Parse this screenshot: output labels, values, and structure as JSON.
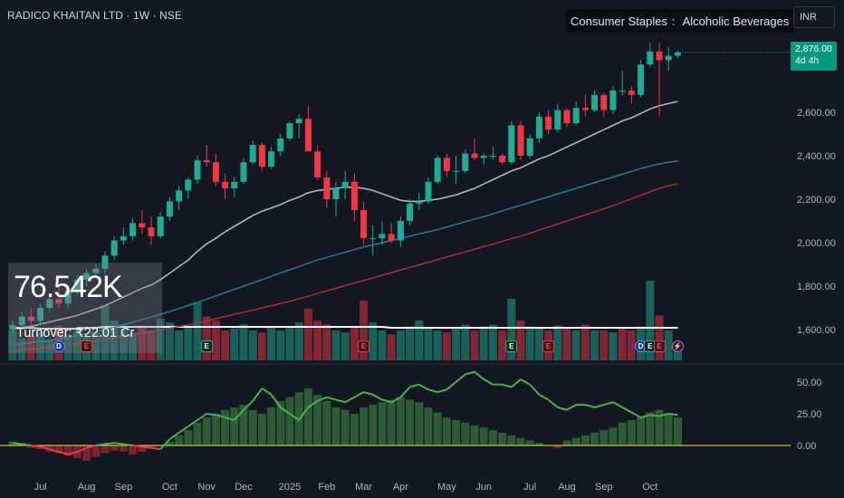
{
  "header": {
    "title": "RADICO KHAITAN LTD · 1W · NSE",
    "sector": "Consumer Staples",
    "sector_separator": ":",
    "industry": "Alcoholic Beverages",
    "currency": "INR"
  },
  "price_tag": {
    "price": "2,876.00",
    "countdown": "4d 4h"
  },
  "volume_label": {
    "value": "76.542K",
    "turnover": "Turnover: ₹22.01 Cr"
  },
  "colors": {
    "up": "#22ab94",
    "down": "#f23645",
    "ma20": "#b2b5be",
    "ma50": "#2a7f8f",
    "ma100": "#a8323e",
    "osc": "#4caf50"
  },
  "markers": [
    {
      "type": "dividend",
      "letter": "D"
    },
    {
      "type": "earnings",
      "letter": "E"
    },
    {
      "type": "earnings-green",
      "letter": "E"
    },
    {
      "type": "earnings",
      "letter": "E"
    },
    {
      "type": "earnings-green",
      "letter": "E"
    },
    {
      "type": "earnings",
      "letter": "E"
    },
    {
      "type": "dividend",
      "letter": "D"
    },
    {
      "type": "earnings-green",
      "letter": "E"
    },
    {
      "type": "earnings",
      "letter": "E"
    },
    {
      "type": "split",
      "letter": "⚡"
    }
  ],
  "chart_data": [
    {
      "type": "candlestick",
      "title": "RADICO KHAITAN LTD · 1W · NSE",
      "ylim": [
        1450,
        2950
      ],
      "yticks": [
        "1,600.00",
        "1,800.00",
        "2,000.00",
        "2,200.00",
        "2,400.00",
        "2,600.00"
      ],
      "xticks": [
        {
          "label": "Jul",
          "x": 3
        },
        {
          "label": "Aug",
          "x": 8
        },
        {
          "label": "Sep",
          "x": 12
        },
        {
          "label": "Oct",
          "x": 17
        },
        {
          "label": "Nov",
          "x": 21
        },
        {
          "label": "Dec",
          "x": 25
        },
        {
          "label": "2025",
          "x": 30
        },
        {
          "label": "Feb",
          "x": 34
        },
        {
          "label": "Mar",
          "x": 38
        },
        {
          "label": "Apr",
          "x": 42
        },
        {
          "label": "May",
          "x": 47
        },
        {
          "label": "Jun",
          "x": 51
        },
        {
          "label": "Jul",
          "x": 56
        },
        {
          "label": "Aug",
          "x": 60
        },
        {
          "label": "Sep",
          "x": 64
        },
        {
          "label": "Oct",
          "x": 69
        }
      ],
      "last_price": 2876,
      "ohlc": [
        [
          1600,
          1640,
          1580,
          1620
        ],
        [
          1620,
          1680,
          1600,
          1660
        ],
        [
          1660,
          1700,
          1620,
          1640
        ],
        [
          1640,
          1720,
          1630,
          1700
        ],
        [
          1700,
          1760,
          1680,
          1740
        ],
        [
          1740,
          1800,
          1700,
          1720
        ],
        [
          1720,
          1790,
          1700,
          1780
        ],
        [
          1780,
          1850,
          1760,
          1830
        ],
        [
          1830,
          1880,
          1800,
          1860
        ],
        [
          1860,
          1900,
          1840,
          1880
        ],
        [
          1880,
          1960,
          1860,
          1940
        ],
        [
          1940,
          2030,
          1920,
          2010
        ],
        [
          2010,
          2070,
          1990,
          2030
        ],
        [
          2030,
          2110,
          2010,
          2090
        ],
        [
          2090,
          2150,
          2040,
          2070
        ],
        [
          2070,
          2120,
          1990,
          2030
        ],
        [
          2030,
          2140,
          2020,
          2120
        ],
        [
          2120,
          2210,
          2100,
          2190
        ],
        [
          2190,
          2260,
          2150,
          2240
        ],
        [
          2240,
          2300,
          2200,
          2290
        ],
        [
          2290,
          2400,
          2270,
          2380
        ],
        [
          2380,
          2450,
          2350,
          2370
        ],
        [
          2370,
          2410,
          2260,
          2280
        ],
        [
          2280,
          2320,
          2200,
          2250
        ],
        [
          2250,
          2300,
          2210,
          2280
        ],
        [
          2280,
          2390,
          2270,
          2370
        ],
        [
          2370,
          2470,
          2360,
          2450
        ],
        [
          2450,
          2460,
          2330,
          2350
        ],
        [
          2350,
          2440,
          2340,
          2420
        ],
        [
          2420,
          2500,
          2400,
          2480
        ],
        [
          2480,
          2560,
          2470,
          2550
        ],
        [
          2550,
          2590,
          2480,
          2570
        ],
        [
          2570,
          2630,
          2430,
          2420
        ],
        [
          2420,
          2450,
          2290,
          2300
        ],
        [
          2300,
          2330,
          2160,
          2200
        ],
        [
          2200,
          2280,
          2120,
          2250
        ],
        [
          2250,
          2330,
          2200,
          2280
        ],
        [
          2280,
          2320,
          2100,
          2150
        ],
        [
          2150,
          2190,
          1990,
          2020
        ],
        [
          2020,
          2080,
          1940,
          2020
        ],
        [
          2020,
          2100,
          1990,
          2040
        ],
        [
          2040,
          2090,
          2000,
          2010
        ],
        [
          2010,
          2120,
          1980,
          2100
        ],
        [
          2100,
          2200,
          2080,
          2180
        ],
        [
          2180,
          2230,
          2150,
          2190
        ],
        [
          2190,
          2300,
          2180,
          2280
        ],
        [
          2280,
          2400,
          2270,
          2390
        ],
        [
          2390,
          2410,
          2300,
          2330
        ],
        [
          2330,
          2400,
          2270,
          2330
        ],
        [
          2330,
          2430,
          2320,
          2410
        ],
        [
          2410,
          2480,
          2380,
          2390
        ],
        [
          2390,
          2410,
          2360,
          2400
        ],
        [
          2400,
          2440,
          2380,
          2400
        ],
        [
          2400,
          2410,
          2360,
          2370
        ],
        [
          2370,
          2560,
          2360,
          2540
        ],
        [
          2540,
          2560,
          2380,
          2400
        ],
        [
          2400,
          2500,
          2390,
          2480
        ],
        [
          2480,
          2600,
          2460,
          2580
        ],
        [
          2580,
          2610,
          2500,
          2520
        ],
        [
          2520,
          2640,
          2510,
          2610
        ],
        [
          2610,
          2620,
          2530,
          2550
        ],
        [
          2550,
          2650,
          2540,
          2620
        ],
        [
          2620,
          2680,
          2580,
          2610
        ],
        [
          2610,
          2700,
          2600,
          2680
        ],
        [
          2680,
          2690,
          2580,
          2610
        ],
        [
          2610,
          2720,
          2590,
          2700
        ],
        [
          2700,
          2790,
          2680,
          2700
        ],
        [
          2700,
          2720,
          2640,
          2680
        ],
        [
          2680,
          2840,
          2670,
          2820
        ],
        [
          2820,
          2920,
          2810,
          2880
        ],
        [
          2880,
          2920,
          2580,
          2840
        ],
        [
          2840,
          2900,
          2790,
          2860
        ],
        [
          2860,
          2885,
          2850,
          2876
        ]
      ],
      "ma20": [
        1600,
        1610,
        1615,
        1625,
        1635,
        1645,
        1655,
        1665,
        1680,
        1695,
        1710,
        1730,
        1750,
        1770,
        1790,
        1805,
        1830,
        1860,
        1890,
        1920,
        1960,
        1995,
        2020,
        2050,
        2075,
        2100,
        2125,
        2145,
        2160,
        2175,
        2195,
        2210,
        2230,
        2240,
        2245,
        2250,
        2255,
        2255,
        2250,
        2240,
        2225,
        2210,
        2195,
        2190,
        2190,
        2195,
        2200,
        2210,
        2220,
        2235,
        2250,
        2270,
        2290,
        2310,
        2330,
        2345,
        2365,
        2385,
        2400,
        2420,
        2440,
        2460,
        2480,
        2500,
        2520,
        2540,
        2560,
        2575,
        2595,
        2615,
        2630,
        2640,
        2650
      ],
      "ma50": [
        1530,
        1535,
        1540,
        1545,
        1550,
        1558,
        1565,
        1573,
        1580,
        1590,
        1600,
        1610,
        1622,
        1634,
        1646,
        1658,
        1670,
        1683,
        1697,
        1711,
        1725,
        1740,
        1755,
        1770,
        1785,
        1800,
        1815,
        1830,
        1845,
        1860,
        1875,
        1890,
        1905,
        1920,
        1932,
        1944,
        1956,
        1968,
        1980,
        1990,
        2000,
        2010,
        2020,
        2030,
        2040,
        2050,
        2060,
        2072,
        2084,
        2096,
        2108,
        2120,
        2133,
        2146,
        2159,
        2172,
        2185,
        2198,
        2211,
        2224,
        2237,
        2250,
        2263,
        2276,
        2289,
        2302,
        2315,
        2328,
        2341,
        2352,
        2362,
        2370,
        2376
      ],
      "ma100": [
        1500,
        1505,
        1510,
        1515,
        1520,
        1525,
        1531,
        1537,
        1543,
        1549,
        1555,
        1562,
        1569,
        1576,
        1583,
        1590,
        1598,
        1606,
        1614,
        1622,
        1630,
        1640,
        1650,
        1660,
        1670,
        1680,
        1690,
        1700,
        1710,
        1720,
        1730,
        1742,
        1754,
        1766,
        1778,
        1790,
        1802,
        1814,
        1826,
        1838,
        1850,
        1862,
        1874,
        1886,
        1898,
        1910,
        1922,
        1934,
        1946,
        1958,
        1970,
        1982,
        1994,
        2006,
        2018,
        2030,
        2044,
        2058,
        2072,
        2086,
        2100,
        2114,
        2128,
        2142,
        2156,
        2170,
        2186,
        2202,
        2218,
        2234,
        2250,
        2262,
        2270
      ]
    },
    {
      "type": "bar",
      "title": "Volume",
      "values": [
        30,
        22,
        25,
        28,
        20,
        35,
        26,
        30,
        24,
        28,
        55,
        40,
        32,
        28,
        35,
        30,
        42,
        38,
        30,
        34,
        58,
        44,
        40,
        30,
        32,
        36,
        30,
        28,
        34,
        30,
        33,
        38,
        52,
        40,
        36,
        30,
        28,
        34,
        60,
        38,
        30,
        26,
        30,
        34,
        40,
        33,
        30,
        28,
        32,
        36,
        30,
        34,
        36,
        30,
        62,
        40,
        34,
        32,
        30,
        35,
        32,
        30,
        36,
        30,
        30,
        28,
        33,
        30,
        34,
        80,
        45,
        30,
        12
      ],
      "colors_up": [
        true,
        true,
        false,
        true,
        true,
        false,
        true,
        true,
        true,
        true,
        true,
        true,
        true,
        true,
        false,
        false,
        true,
        true,
        true,
        true,
        true,
        false,
        false,
        false,
        true,
        true,
        true,
        false,
        true,
        true,
        true,
        true,
        false,
        false,
        false,
        true,
        true,
        false,
        false,
        true,
        true,
        false,
        true,
        true,
        true,
        true,
        true,
        false,
        true,
        true,
        false,
        true,
        true,
        false,
        true,
        false,
        true,
        true,
        false,
        true,
        false,
        true,
        false,
        true,
        false,
        true,
        false,
        false,
        true,
        true,
        false,
        true,
        true
      ],
      "turnover_ma": [
        36,
        36,
        36,
        35,
        35,
        35,
        35,
        35,
        36,
        36,
        37,
        37,
        37,
        37,
        37,
        37,
        37,
        37,
        37,
        37,
        37,
        37,
        37,
        37,
        37,
        37,
        37,
        37,
        37,
        37,
        37,
        37,
        37,
        37,
        37,
        37,
        37,
        37,
        37,
        37,
        37,
        36,
        36,
        36,
        36,
        36,
        36,
        36,
        36,
        36,
        36,
        36,
        36,
        36,
        36,
        36,
        36,
        36,
        36,
        36,
        36,
        36,
        36,
        36,
        36,
        36,
        36,
        36,
        36,
        36,
        36,
        36,
        36
      ]
    },
    {
      "type": "bar",
      "title": "Oscillator",
      "ylim": [
        -20,
        62
      ],
      "yticks": [
        "50.00",
        "25.00",
        "0.00"
      ],
      "values": [
        3,
        2,
        -2,
        -3,
        -5,
        -6,
        -8,
        -10,
        -12,
        -9,
        -6,
        -4,
        -5,
        -7,
        -5,
        -2,
        0,
        3,
        8,
        12,
        18,
        22,
        25,
        28,
        30,
        32,
        28,
        25,
        30,
        35,
        38,
        42,
        45,
        40,
        35,
        30,
        28,
        25,
        30,
        32,
        34,
        36,
        38,
        36,
        34,
        30,
        26,
        22,
        20,
        18,
        16,
        14,
        12,
        10,
        8,
        6,
        4,
        2,
        0,
        -2,
        4,
        6,
        8,
        10,
        12,
        14,
        18,
        20,
        22,
        26,
        28,
        25,
        22
      ],
      "line": [
        2,
        1,
        0,
        -1,
        -3,
        -5,
        -7,
        -5,
        -2,
        0,
        1,
        2,
        1,
        0,
        -1,
        -2,
        -3,
        5,
        10,
        15,
        20,
        25,
        24,
        22,
        20,
        28,
        35,
        45,
        40,
        30,
        25,
        20,
        30,
        35,
        38,
        36,
        34,
        38,
        42,
        40,
        36,
        34,
        38,
        46,
        48,
        44,
        42,
        44,
        50,
        56,
        58,
        52,
        48,
        48,
        46,
        52,
        48,
        40,
        36,
        30,
        28,
        32,
        32,
        30,
        32,
        34,
        30,
        26,
        22,
        24,
        23,
        25,
        24
      ]
    }
  ]
}
